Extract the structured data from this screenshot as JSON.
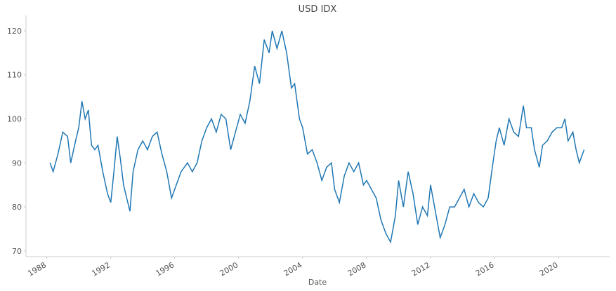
{
  "chart_data": {
    "type": "line",
    "title": "USD IDX",
    "x_label": "Date",
    "color": "#1f77b4",
    "x": [
      1988.2,
      1988.4,
      1988.7,
      1989.0,
      1989.3,
      1989.5,
      1989.8,
      1990.0,
      1990.2,
      1990.4,
      1990.6,
      1990.8,
      1991.0,
      1991.2,
      1991.5,
      1991.8,
      1992.0,
      1992.2,
      1992.4,
      1992.6,
      1992.8,
      1993.0,
      1993.2,
      1993.4,
      1993.7,
      1994.0,
      1994.3,
      1994.6,
      1994.9,
      1995.2,
      1995.5,
      1995.8,
      1996.1,
      1996.4,
      1996.8,
      1997.1,
      1997.4,
      1997.7,
      1998.0,
      1998.3,
      1998.6,
      1998.9,
      1999.2,
      1999.5,
      1999.8,
      2000.1,
      2000.4,
      2000.7,
      2001.0,
      2001.3,
      2001.6,
      2001.9,
      2002.1,
      2002.4,
      2002.7,
      2003.0,
      2003.3,
      2003.5,
      2003.8,
      2004.0,
      2004.3,
      2004.6,
      2004.9,
      2005.2,
      2005.5,
      2005.8,
      2006.0,
      2006.3,
      2006.6,
      2006.9,
      2007.2,
      2007.5,
      2007.8,
      2008.0,
      2008.3,
      2008.6,
      2008.9,
      2009.2,
      2009.5,
      2009.8,
      2010.0,
      2010.3,
      2010.6,
      2010.9,
      2011.2,
      2011.5,
      2011.8,
      2012.0,
      2012.3,
      2012.6,
      2012.9,
      2013.2,
      2013.5,
      2013.8,
      2014.1,
      2014.4,
      2014.7,
      2015.0,
      2015.3,
      2015.6,
      2015.9,
      2016.1,
      2016.3,
      2016.6,
      2016.9,
      2017.2,
      2017.5,
      2017.8,
      2018.0,
      2018.3,
      2018.5,
      2018.8,
      2019.0,
      2019.3,
      2019.6,
      2019.9,
      2020.2,
      2020.4,
      2020.6,
      2020.9,
      2021.1,
      2021.3,
      2021.6
    ],
    "values": [
      90,
      88,
      92,
      97,
      96,
      90,
      95,
      98,
      104,
      100,
      102,
      94,
      93,
      94,
      88,
      83,
      81,
      88,
      96,
      91,
      85,
      82,
      79,
      88,
      93,
      95,
      93,
      96,
      97,
      92,
      88,
      82,
      85,
      88,
      90,
      88,
      90,
      95,
      98,
      100,
      97,
      101,
      100,
      93,
      97,
      101,
      99,
      104,
      112,
      108,
      118,
      115,
      120,
      116,
      120,
      115,
      107,
      108,
      100,
      98,
      92,
      93,
      90,
      86,
      89,
      90,
      84,
      81,
      87,
      90,
      88,
      90,
      85,
      86,
      84,
      82,
      77,
      74,
      72,
      78,
      86,
      80,
      88,
      83,
      76,
      80,
      78,
      85,
      79,
      73,
      76,
      80,
      80,
      82,
      84,
      80,
      83,
      81,
      80,
      82,
      90,
      95,
      98,
      94,
      100,
      97,
      96,
      103,
      98,
      98,
      93,
      89,
      94,
      95,
      97,
      98,
      98,
      100,
      95,
      97,
      93,
      90,
      93
    ],
    "xlim": [
      1986.7,
      2023.2
    ],
    "xticks": [
      1988,
      1992,
      1996,
      2000,
      2004,
      2008,
      2012,
      2016,
      2020
    ],
    "ylim": [
      68.7,
      123.5
    ],
    "yticks": [
      70,
      80,
      90,
      100,
      110,
      120
    ],
    "grid": false
  }
}
